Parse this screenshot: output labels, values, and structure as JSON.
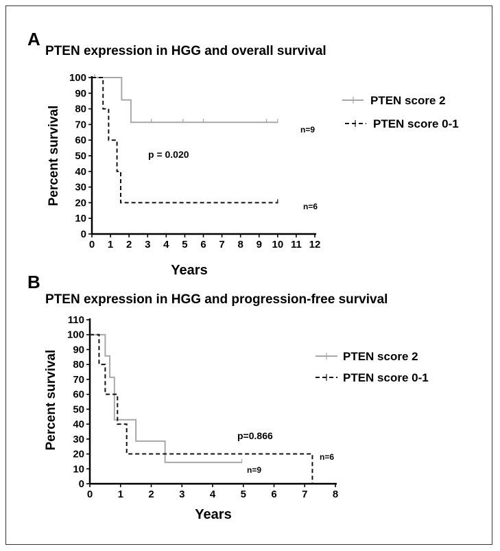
{
  "chart_data": [
    {
      "panel_label": "A",
      "type": "line",
      "subtype": "kaplan-meier",
      "title": "PTEN expression in HGG and overall survival",
      "xlabel": "Years",
      "ylabel": "Percent survival",
      "xlim": [
        0,
        12
      ],
      "ylim": [
        0,
        100
      ],
      "xticks": [
        "0",
        "1",
        "2",
        "3",
        "4",
        "5",
        "6",
        "7",
        "8",
        "9",
        "10",
        "11",
        "12"
      ],
      "yticks": [
        "0",
        "10",
        "20",
        "30",
        "40",
        "50",
        "60",
        "70",
        "80",
        "90",
        "100"
      ],
      "p_value_text": "p = 0.020",
      "series": [
        {
          "name": "PTEN score 2",
          "color": "#a8a8a8",
          "style": "solid",
          "n_text": "n=9",
          "steps": [
            [
              0,
              100
            ],
            [
              1.6,
              85.7
            ],
            [
              2.1,
              71.4
            ],
            [
              10,
              71.4
            ]
          ],
          "censor_x": [
            0.15,
            3.2,
            4.9,
            6.0,
            9.4,
            10
          ]
        },
        {
          "name": "PTEN score 0-1",
          "color": "#111111",
          "style": "dashed",
          "n_text": "n=6",
          "steps": [
            [
              0,
              100
            ],
            [
              0.6,
              80
            ],
            [
              0.9,
              60
            ],
            [
              1.35,
              40
            ],
            [
              1.55,
              20
            ],
            [
              10,
              20
            ]
          ],
          "censor_x": [
            10
          ]
        }
      ]
    },
    {
      "panel_label": "B",
      "type": "line",
      "subtype": "kaplan-meier",
      "title": "PTEN expression in HGG and progression-free survival",
      "xlabel": "Years",
      "ylabel": "Percent survival",
      "xlim": [
        0,
        8
      ],
      "ylim": [
        0,
        110
      ],
      "xticks": [
        "0",
        "1",
        "2",
        "3",
        "4",
        "5",
        "6",
        "7",
        "8"
      ],
      "yticks": [
        "0",
        "10",
        "20",
        "30",
        "40",
        "50",
        "60",
        "70",
        "80",
        "90",
        "100",
        "110"
      ],
      "p_value_text": "p=0.866",
      "series": [
        {
          "name": "PTEN score 2",
          "color": "#a8a8a8",
          "style": "solid",
          "n_text": "n=9",
          "steps": [
            [
              0,
              100
            ],
            [
              0.5,
              85.7
            ],
            [
              0.65,
              71.4
            ],
            [
              0.8,
              42.9
            ],
            [
              1.5,
              28.6
            ],
            [
              2.45,
              14.3
            ],
            [
              4.95,
              14.3
            ]
          ],
          "censor_x": [
            4.95
          ]
        },
        {
          "name": "PTEN score 0-1",
          "color": "#111111",
          "style": "dashed",
          "n_text": "n=6",
          "steps": [
            [
              0,
              100
            ],
            [
              0.3,
              80
            ],
            [
              0.5,
              60
            ],
            [
              0.9,
              40
            ],
            [
              1.2,
              20
            ],
            [
              7.25,
              20
            ],
            [
              7.25,
              0
            ]
          ],
          "censor_x": []
        }
      ]
    }
  ]
}
